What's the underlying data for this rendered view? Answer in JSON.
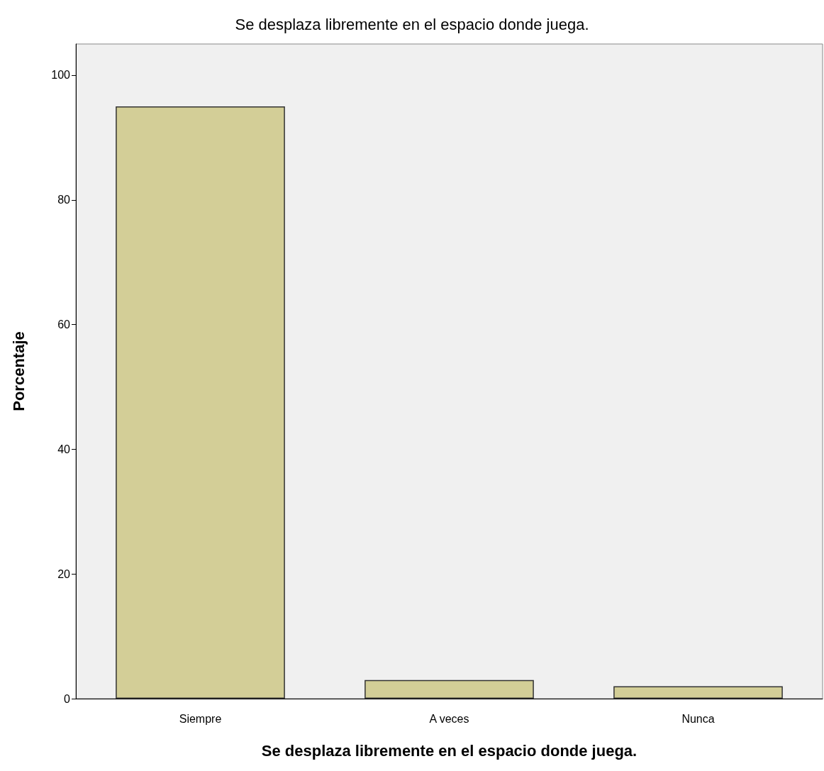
{
  "chart_data": {
    "type": "bar",
    "title": "Se desplaza libremente en el espacio donde juega.",
    "xlabel": "Se desplaza libremente en el espacio donde juega.",
    "ylabel": "Porcentaje",
    "categories": [
      "Siempre",
      "A veces",
      "Nunca"
    ],
    "values": [
      95,
      3,
      2
    ],
    "color": "#d3ce97",
    "ylim": [
      0,
      105
    ],
    "yticks": [
      0,
      20,
      40,
      60,
      80,
      100
    ],
    "grid": false
  }
}
